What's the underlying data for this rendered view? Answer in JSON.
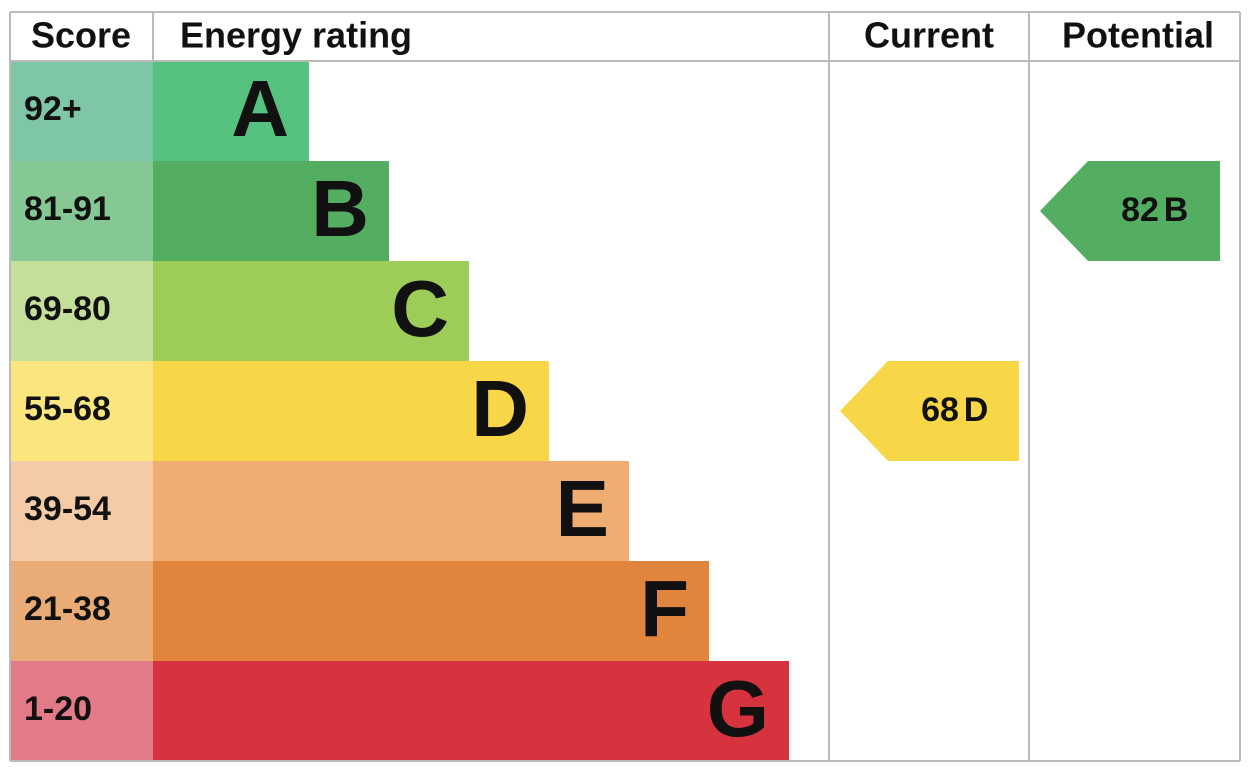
{
  "header": {
    "score": "Score",
    "rating": "Energy rating",
    "current": "Current",
    "potential": "Potential"
  },
  "rows": [
    {
      "score": "92+",
      "rating": "A",
      "color": "#55c280",
      "score_color": "#7fc6a7"
    },
    {
      "score": "81-91",
      "rating": "B",
      "color": "#53ae61",
      "score_color": "#86c893"
    },
    {
      "score": "69-80",
      "rating": "C",
      "color": "#9dcd58",
      "score_color": "#c3e09a"
    },
    {
      "score": "55-68",
      "rating": "D",
      "color": "#f7d648",
      "score_color": "#fbe57f"
    },
    {
      "score": "39-54",
      "rating": "E",
      "color": "#efad71",
      "score_color": "#f5caa6"
    },
    {
      "score": "21-38",
      "rating": "F",
      "color": "#e0853b",
      "score_color": "#eaac76"
    },
    {
      "score": "1-20",
      "rating": "G",
      "color": "#d7333f",
      "score_color": "#e37a87"
    }
  ],
  "current": {
    "value": 68,
    "rating": "D"
  },
  "potential": {
    "value": 82,
    "rating": "B"
  }
}
